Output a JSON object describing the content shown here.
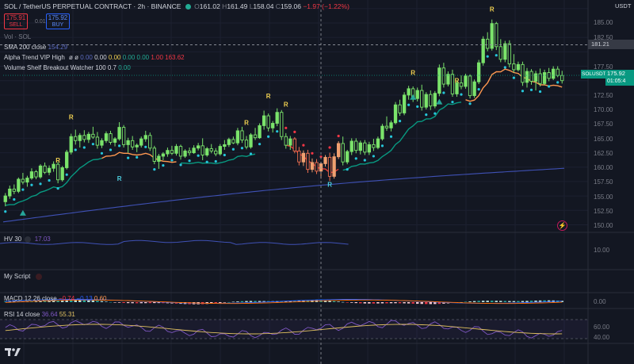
{
  "header": {
    "symbol_line": "SOL / TetherUS PERPETUAL CONTRACT · 2h · BINANCE",
    "ohlc": {
      "o_label": "O",
      "o": "161.02",
      "h_label": "H",
      "h": "161.49",
      "l_label": "L",
      "l": "158.04",
      "c_label": "C",
      "c": "159.06",
      "change": "−1.97 (−1.22%)"
    },
    "currency": "USDT",
    "sell": {
      "price": "175.91",
      "label": "SELL"
    },
    "spread": "0.01",
    "buy": {
      "price": "175.92",
      "label": "BUY"
    }
  },
  "indicators": {
    "vol": "Vol · SOL",
    "sma_label": "SMA 200 close",
    "sma_value": "154.29",
    "alpha_label": "Alpha Trend VIP High",
    "alpha_phi": "ø ø",
    "alpha_values": [
      "0.00",
      "0.00",
      "0.00",
      "0.00",
      "0.00",
      "1.00",
      "163.62"
    ],
    "vsbw_label": "Volume Shelf Breakout Watcher 100 0.7",
    "vsbw_value": "0.00",
    "hv_label": "HV 30",
    "hv_value": "17.03",
    "script_label": "My Script",
    "macd_label": "MACD 12 26 close",
    "macd_values": [
      "−0.74",
      "−0.13",
      "0.60"
    ],
    "rsi_label": "RSI 14 close",
    "rsi_values": [
      "36.64",
      "55.31"
    ]
  },
  "price_axis": {
    "ticks": [
      "185.00",
      "182.50",
      "177.50",
      "175.00",
      "172.50",
      "170.00",
      "167.50",
      "165.00",
      "162.50",
      "160.00",
      "157.50",
      "155.00",
      "152.50",
      "150.00"
    ],
    "crosshair_price": "181.21",
    "current_symbol": "SOLUSDT.P",
    "current_price": "175.92",
    "countdown": "01:05:4"
  },
  "hv_axis": {
    "ticks": [
      "10.00"
    ]
  },
  "macd_axis": {
    "ticks": [
      "0.00"
    ]
  },
  "rsi_axis": {
    "ticks": [
      "60.00",
      "40.00"
    ]
  },
  "colors": {
    "up": "#22ab94",
    "bull_candle": "#7be36b",
    "down": "#f23645",
    "orange": "#ff9850",
    "sma": "#3f51b5",
    "rsi": "#7e57c2",
    "rsi_ma": "#e0c060",
    "alpha_green": "#089981"
  },
  "icons": {
    "alert": "lightning-icon",
    "logo": "tradingview-logo"
  },
  "markers": [
    "R",
    "R",
    "R",
    "R",
    "R",
    "R",
    "R",
    "R",
    "R",
    "R"
  ],
  "chart_data": {
    "type": "candlestick",
    "x_interval": "2h",
    "ylim": [
      149,
      187
    ],
    "candles": [
      [
        154.0,
        155.5,
        153.2,
        155.0
      ],
      [
        155.0,
        156.8,
        154.5,
        156.2
      ],
      [
        156.2,
        157.0,
        155.3,
        155.8
      ],
      [
        155.8,
        158.2,
        155.5,
        157.9
      ],
      [
        157.9,
        159.0,
        157.0,
        157.4
      ],
      [
        157.4,
        158.5,
        156.6,
        158.1
      ],
      [
        158.1,
        159.8,
        157.8,
        159.2
      ],
      [
        159.2,
        159.5,
        157.9,
        158.3
      ],
      [
        158.3,
        160.5,
        158.0,
        160.2
      ],
      [
        160.2,
        160.8,
        158.8,
        159.1
      ],
      [
        159.1,
        160.3,
        158.6,
        159.8
      ],
      [
        159.8,
        161.0,
        159.2,
        160.5
      ],
      [
        160.5,
        160.9,
        157.2,
        157.8
      ],
      [
        157.8,
        160.2,
        157.5,
        159.9
      ],
      [
        159.9,
        163.0,
        159.6,
        162.6
      ],
      [
        162.6,
        165.8,
        162.2,
        165.3
      ],
      [
        165.3,
        166.5,
        163.9,
        164.6
      ],
      [
        164.6,
        165.9,
        163.4,
        165.5
      ],
      [
        165.5,
        166.4,
        164.3,
        164.8
      ],
      [
        164.8,
        166.1,
        164.2,
        165.7
      ],
      [
        165.7,
        167.0,
        164.9,
        165.2
      ],
      [
        165.2,
        166.1,
        163.2,
        163.8
      ],
      [
        163.8,
        165.0,
        163.3,
        164.6
      ],
      [
        164.6,
        166.2,
        164.2,
        165.8
      ],
      [
        165.8,
        166.3,
        163.9,
        164.3
      ],
      [
        164.3,
        165.2,
        163.6,
        164.9
      ],
      [
        164.9,
        167.8,
        164.6,
        166.9
      ],
      [
        166.9,
        167.3,
        163.4,
        163.9
      ],
      [
        163.9,
        165.1,
        162.5,
        164.6
      ],
      [
        164.6,
        165.4,
        163.0,
        163.5
      ],
      [
        163.5,
        164.1,
        162.6,
        163.8
      ],
      [
        163.8,
        165.3,
        163.4,
        164.9
      ],
      [
        164.9,
        166.3,
        164.4,
        165.5
      ],
      [
        165.5,
        166.0,
        162.8,
        163.3
      ],
      [
        163.3,
        163.7,
        160.5,
        161.0
      ],
      [
        161.0,
        162.3,
        159.7,
        161.9
      ],
      [
        161.9,
        162.6,
        161.2,
        162.3
      ],
      [
        162.3,
        163.4,
        161.8,
        162.9
      ],
      [
        162.9,
        163.7,
        162.1,
        162.4
      ],
      [
        162.4,
        164.0,
        162.0,
        163.6
      ],
      [
        163.6,
        163.9,
        161.3,
        161.9
      ],
      [
        161.9,
        163.1,
        161.6,
        162.8
      ],
      [
        162.8,
        163.4,
        162.0,
        162.5
      ],
      [
        162.5,
        163.8,
        162.3,
        163.3
      ],
      [
        163.3,
        164.2,
        162.9,
        163.7
      ],
      [
        163.7,
        165.0,
        161.2,
        162.1
      ],
      [
        162.1,
        163.5,
        161.8,
        163.2
      ],
      [
        163.2,
        164.0,
        162.4,
        162.8
      ],
      [
        162.8,
        163.3,
        161.9,
        162.3
      ],
      [
        162.3,
        164.0,
        162.0,
        163.6
      ],
      [
        163.6,
        164.7,
        163.0,
        163.9
      ],
      [
        163.9,
        165.1,
        163.5,
        164.8
      ],
      [
        164.8,
        165.3,
        164.0,
        164.2
      ],
      [
        164.2,
        166.8,
        163.8,
        166.3
      ],
      [
        166.3,
        167.0,
        164.2,
        164.7
      ],
      [
        164.7,
        165.4,
        163.1,
        163.5
      ],
      [
        163.5,
        165.9,
        163.2,
        165.6
      ],
      [
        165.6,
        166.8,
        164.7,
        165.1
      ],
      [
        165.1,
        167.6,
        164.9,
        167.2
      ],
      [
        167.2,
        169.8,
        166.5,
        168.9
      ],
      [
        168.9,
        169.3,
        166.2,
        166.8
      ],
      [
        166.8,
        168.0,
        166.0,
        167.6
      ],
      [
        167.6,
        170.2,
        167.1,
        169.5
      ],
      [
        169.5,
        169.9,
        164.7,
        165.3
      ],
      [
        165.3,
        165.9,
        163.2,
        163.8
      ],
      [
        163.8,
        165.4,
        163.0,
        164.9
      ],
      [
        164.9,
        165.2,
        162.4,
        162.8
      ],
      [
        162.8,
        163.5,
        160.3,
        160.9
      ],
      [
        160.9,
        162.9,
        160.2,
        162.4
      ],
      [
        162.4,
        163.0,
        159.0,
        159.6
      ],
      [
        159.6,
        161.5,
        159.1,
        160.8
      ],
      [
        160.8,
        161.4,
        158.8,
        159.3
      ],
      [
        159.3,
        160.9,
        158.0,
        160.6
      ],
      [
        160.6,
        162.1,
        160.1,
        161.7
      ],
      [
        161.7,
        162.5,
        157.6,
        158.4
      ],
      [
        158.4,
        162.4,
        158.0,
        161.8
      ],
      [
        161.8,
        164.5,
        161.4,
        164.1
      ],
      [
        164.1,
        165.3,
        160.3,
        160.9
      ],
      [
        160.9,
        163.0,
        160.5,
        162.7
      ],
      [
        162.7,
        165.0,
        162.1,
        164.5
      ],
      [
        164.5,
        165.0,
        162.4,
        162.9
      ],
      [
        162.9,
        164.6,
        162.2,
        164.2
      ],
      [
        164.2,
        164.7,
        162.1,
        162.6
      ],
      [
        162.6,
        164.4,
        162.1,
        163.9
      ],
      [
        163.9,
        164.9,
        162.8,
        163.4
      ],
      [
        163.4,
        165.3,
        163.1,
        164.9
      ],
      [
        164.9,
        167.5,
        164.6,
        167.1
      ],
      [
        167.1,
        168.8,
        166.3,
        166.8
      ],
      [
        166.8,
        168.1,
        166.2,
        167.7
      ],
      [
        167.7,
        171.3,
        167.4,
        170.8
      ],
      [
        170.8,
        171.7,
        168.9,
        169.4
      ],
      [
        169.4,
        173.0,
        169.0,
        172.5
      ],
      [
        172.5,
        174.1,
        171.7,
        173.6
      ],
      [
        173.6,
        174.0,
        171.3,
        171.9
      ],
      [
        171.9,
        173.8,
        171.4,
        173.3
      ],
      [
        173.3,
        174.3,
        169.8,
        170.4
      ],
      [
        170.4,
        173.0,
        170.0,
        172.6
      ],
      [
        172.6,
        173.3,
        169.9,
        170.6
      ],
      [
        170.6,
        173.2,
        170.2,
        172.8
      ],
      [
        172.8,
        177.8,
        172.3,
        177.2
      ],
      [
        177.2,
        178.1,
        173.8,
        174.4
      ],
      [
        174.4,
        176.6,
        174.0,
        176.1
      ],
      [
        176.1,
        176.9,
        172.2,
        172.7
      ],
      [
        172.7,
        175.0,
        172.2,
        174.6
      ],
      [
        174.6,
        175.9,
        173.5,
        174.0
      ],
      [
        174.0,
        176.2,
        173.6,
        175.8
      ],
      [
        175.8,
        176.1,
        171.9,
        172.4
      ],
      [
        172.4,
        175.2,
        172.0,
        174.8
      ],
      [
        174.8,
        178.6,
        174.4,
        178.1
      ],
      [
        178.1,
        182.7,
        177.6,
        182.2
      ],
      [
        182.2,
        183.4,
        180.1,
        180.6
      ],
      [
        180.6,
        185.6,
        180.2,
        184.9
      ],
      [
        184.9,
        185.2,
        180.3,
        180.9
      ],
      [
        180.9,
        182.2,
        178.2,
        178.7
      ],
      [
        178.7,
        181.9,
        178.2,
        181.4
      ],
      [
        181.4,
        182.0,
        177.3,
        177.9
      ],
      [
        177.9,
        179.6,
        176.4,
        176.9
      ],
      [
        176.9,
        178.3,
        176.6,
        177.8
      ],
      [
        177.8,
        178.3,
        174.1,
        174.7
      ],
      [
        174.7,
        177.2,
        173.8,
        176.6
      ],
      [
        176.6,
        177.0,
        174.3,
        174.9
      ],
      [
        174.9,
        176.7,
        173.3,
        176.2
      ],
      [
        176.2,
        177.1,
        174.0,
        174.5
      ],
      [
        174.5,
        176.9,
        174.2,
        176.4
      ],
      [
        176.4,
        177.2,
        174.9,
        175.4
      ],
      [
        175.4,
        177.5,
        175.1,
        177.0
      ],
      [
        177.0,
        177.5,
        175.6,
        175.9
      ],
      [
        175.9,
        176.7,
        174.5,
        175.0
      ]
    ],
    "sma200": {
      "start": 150.5,
      "end": 159.8
    },
    "alpha_trend_last": 163.62,
    "hv30_last": 17.03,
    "rsi_last": 36.64,
    "rsi_ma_last": 55.31
  }
}
